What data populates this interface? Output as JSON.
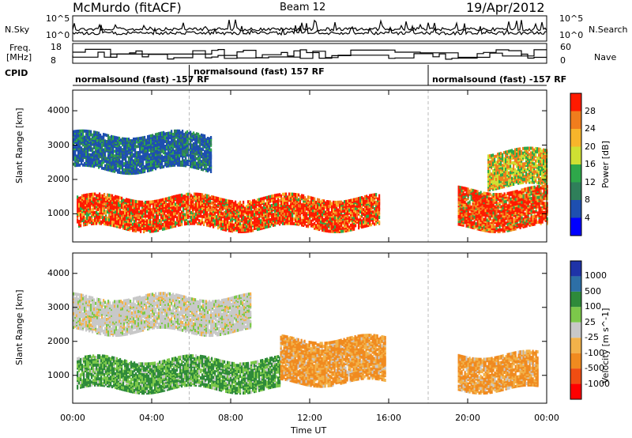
{
  "header": {
    "station": "McMurdo (fitACF)",
    "beam": "Beam 12",
    "date": "19/Apr/2012"
  },
  "top_panels": {
    "nsky_label": "N.Sky",
    "nsky_ticks": [
      "10^5",
      "10^0"
    ],
    "nsearch_label": "N.Search",
    "nsearch_ticks": [
      "10^5",
      "10^0"
    ],
    "freq_label": "Freq.",
    "freq_unit": "[MHz]",
    "freq_ticks": [
      "18",
      "8"
    ],
    "nave_label": "Nave",
    "nave_ticks": [
      "60",
      "0"
    ],
    "cpid_label": "CPID",
    "cpid_segments": [
      {
        "label": "normalsound (fast) -157 RF",
        "start_hour": 0.0,
        "end_hour": 5.9
      },
      {
        "label": "normalsound (fast) 157 RF",
        "start_hour": 5.9,
        "end_hour": 18.0
      },
      {
        "label": "normalsound (fast) -157 RF",
        "start_hour": 18.0,
        "end_hour": 24.0
      }
    ]
  },
  "chart_data": [
    {
      "type": "heatmap",
      "title": "Power",
      "ylabel": "Slant Range [km]",
      "xlabel": "",
      "xlim": [
        0,
        24
      ],
      "ylim": [
        180,
        4600
      ],
      "yticks": [
        1000,
        2000,
        3000,
        4000
      ],
      "colorbar": {
        "label": "Power [dB]",
        "ticks": [
          "4",
          "8",
          "12",
          "16",
          "20",
          "24",
          "28"
        ],
        "colors": [
          "#0000ff",
          "#1e4fb0",
          "#2f7f5a",
          "#2ea84a",
          "#cfe033",
          "#f7b52b",
          "#f07d1d",
          "#ff1a00"
        ]
      },
      "regions": [
        {
          "start_hour": 0.2,
          "end_hour": 15.5,
          "min_km": 600,
          "max_km": 1500,
          "level": "strong"
        },
        {
          "start_hour": 0.0,
          "end_hour": 7.0,
          "min_km": 2300,
          "max_km": 3300,
          "level": "weak"
        },
        {
          "start_hour": 19.5,
          "end_hour": 24.0,
          "min_km": 600,
          "max_km": 1700,
          "level": "strong"
        },
        {
          "start_hour": 21.0,
          "end_hour": 24.0,
          "min_km": 1800,
          "max_km": 2800,
          "level": "medium"
        }
      ]
    },
    {
      "type": "heatmap",
      "title": "Velocity",
      "ylabel": "Slant Range [km]",
      "xlabel": "Time UT",
      "xlim": [
        0,
        24
      ],
      "ylim": [
        180,
        4600
      ],
      "yticks": [
        1000,
        2000,
        3000,
        4000
      ],
      "xticks": [
        "00:00",
        "04:00",
        "08:00",
        "12:00",
        "16:00",
        "20:00",
        "00:00"
      ],
      "colorbar": {
        "label": "Velocity [m s^-1]",
        "ticks": [
          "1000",
          "500",
          "100",
          "25",
          "-25",
          "-100",
          "-500",
          "-1000"
        ],
        "colors": [
          "#1f33a8",
          "#2d6fa6",
          "#2e8a3a",
          "#7cc84a",
          "#c8c8c8",
          "#f2b24a",
          "#f08a1f",
          "#f04d12",
          "#ff0000"
        ]
      },
      "regions": [
        {
          "start_hour": 0.2,
          "end_hour": 10.5,
          "min_km": 600,
          "max_km": 1500,
          "level": "positive"
        },
        {
          "start_hour": 10.5,
          "end_hour": 15.8,
          "min_km": 800,
          "max_km": 2100,
          "level": "negative"
        },
        {
          "start_hour": 0.0,
          "end_hour": 9.0,
          "min_km": 2300,
          "max_km": 3300,
          "level": "near-zero"
        },
        {
          "start_hour": 19.5,
          "end_hour": 23.5,
          "min_km": 600,
          "max_km": 1600,
          "level": "negative"
        }
      ]
    }
  ]
}
